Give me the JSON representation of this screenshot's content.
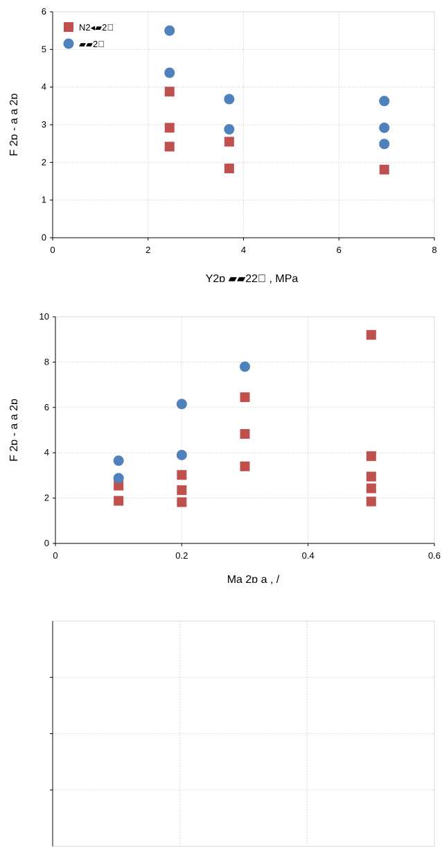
{
  "colors": {
    "series1": "#c0504d",
    "series2": "#4f81bd",
    "grid": "#d9d9d9",
    "axis": "#000000"
  },
  "chart_data": [
    {
      "type": "scatter",
      "xlabel": "Y2ɒ        ▰▰22⃞  , MPa",
      "ylabel": "F 2ɒ - a              a 2ɒ",
      "xlim": [
        0,
        8
      ],
      "ylim": [
        0,
        6
      ],
      "xticks": [
        "0",
        "2",
        "4",
        "6",
        "8"
      ],
      "yticks": [
        "0",
        "1",
        "2",
        "3",
        "4",
        "5",
        "6"
      ],
      "xtick_values": [
        0,
        2,
        4,
        6,
        8
      ],
      "ytick_values": [
        0,
        1,
        2,
        3,
        4,
        5,
        6
      ],
      "grid": true,
      "legend_position": "top-left",
      "series": [
        {
          "name": "N2◂▰2⃞",
          "marker": "square",
          "color": "#c0504d",
          "x": [
            2.45,
            2.45,
            2.45,
            3.7,
            3.7,
            6.95
          ],
          "y": [
            3.88,
            2.92,
            2.42,
            2.55,
            1.84,
            1.81
          ]
        },
        {
          "name": "▰▰2⃞",
          "marker": "circle",
          "color": "#4f81bd",
          "x": [
            2.45,
            2.45,
            3.7,
            3.7,
            6.95,
            6.95,
            6.95
          ],
          "y": [
            5.5,
            4.38,
            3.68,
            2.88,
            3.63,
            2.92,
            2.49
          ]
        }
      ]
    },
    {
      "type": "scatter",
      "xlabel": "Ma      2ɒ   a   ,      /",
      "ylabel": "F 2ɒ - a              a 2ɒ",
      "xlim": [
        0,
        0.6
      ],
      "ylim": [
        0,
        10
      ],
      "xticks": [
        "0",
        "0.2",
        "0.4",
        "0.6"
      ],
      "yticks": [
        "0",
        "2",
        "4",
        "6",
        "8",
        "10"
      ],
      "xtick_values": [
        0,
        0.2,
        0.4,
        0.6
      ],
      "ytick_values": [
        0,
        2,
        4,
        6,
        8,
        10
      ],
      "grid": true,
      "series": [
        {
          "marker": "square",
          "color": "#c0504d",
          "x": [
            0.1,
            0.1,
            0.2,
            0.2,
            0.2,
            0.3,
            0.3,
            0.3,
            0.5,
            0.5,
            0.5,
            0.5,
            0.5
          ],
          "y": [
            2.55,
            1.88,
            3.02,
            2.35,
            1.82,
            6.45,
            4.83,
            3.4,
            9.2,
            3.85,
            2.95,
            2.43,
            1.85
          ]
        },
        {
          "marker": "circle",
          "color": "#4f81bd",
          "x": [
            0.1,
            0.1,
            0.2,
            0.2,
            0.3
          ],
          "y": [
            3.65,
            2.88,
            6.15,
            3.9,
            7.8
          ]
        }
      ]
    },
    {
      "type": "scatter",
      "grid": true,
      "xlim": [
        0,
        1
      ],
      "ylim": [
        0,
        1
      ],
      "x_gridlines": [
        0.3333,
        0.6667
      ],
      "y_gridlines": [
        0.25,
        0.5,
        0.75
      ],
      "series": []
    }
  ]
}
